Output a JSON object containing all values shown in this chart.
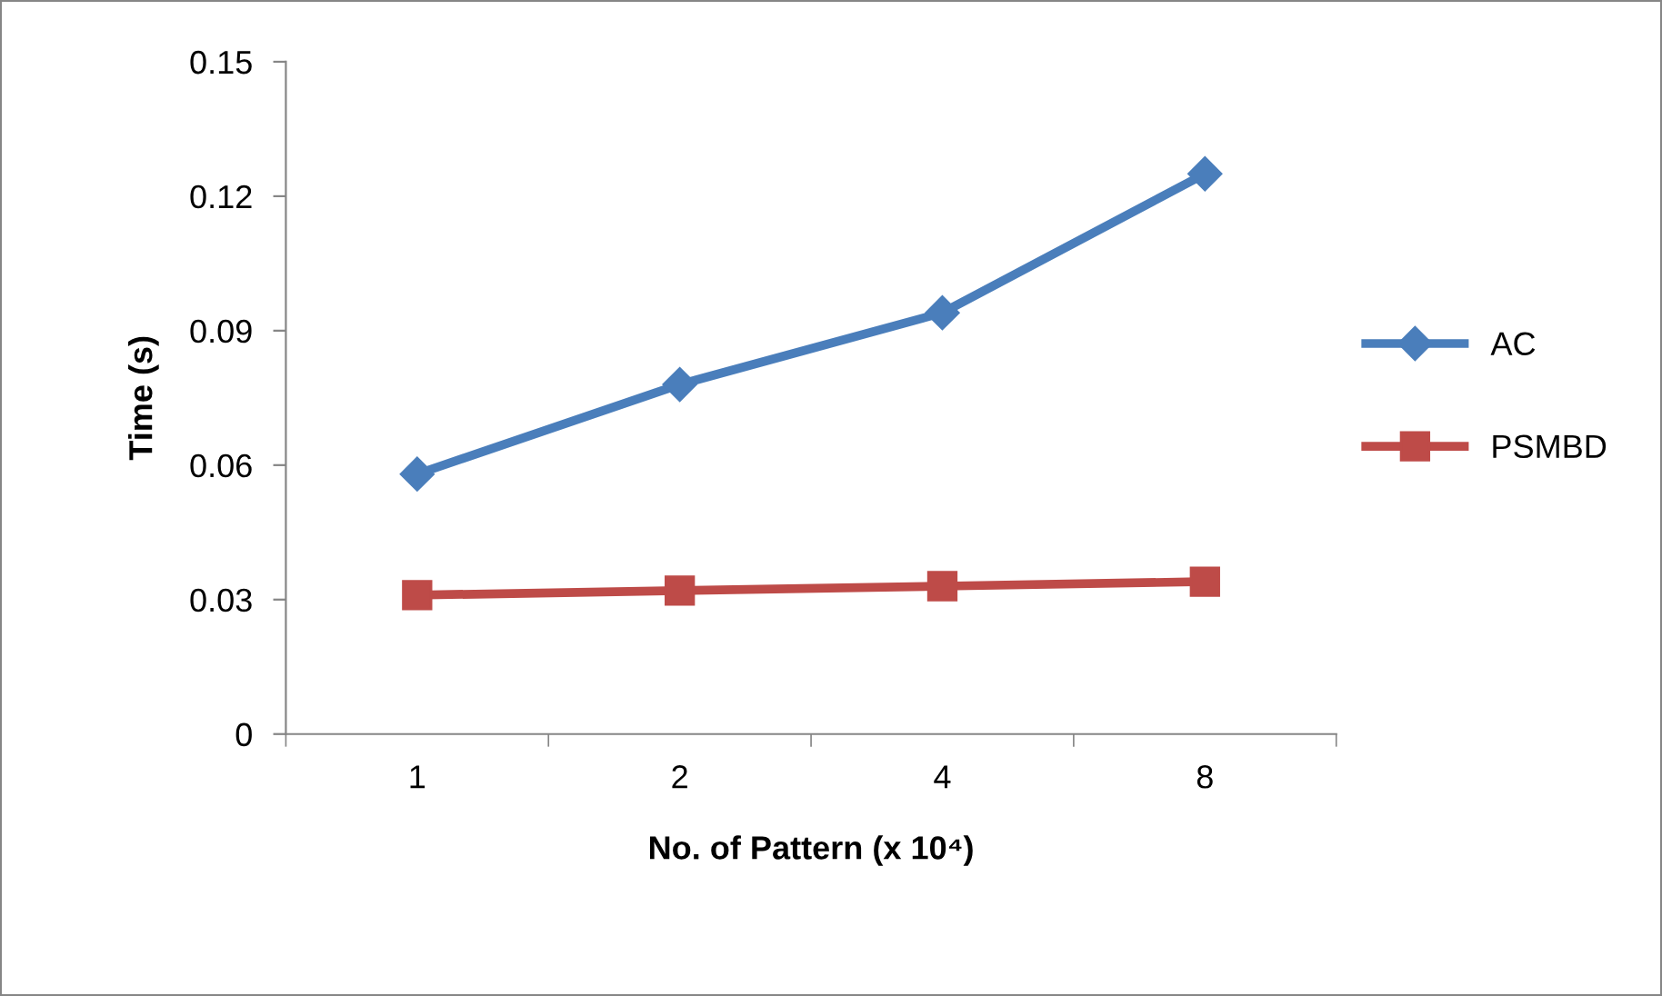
{
  "chart_data": {
    "type": "line",
    "xlabel": "No. of Pattern (x 10⁴)",
    "ylabel": "Time (s)",
    "categories": [
      "1",
      "2",
      "4",
      "8"
    ],
    "series": [
      {
        "name": "AC",
        "color": "#4a7ebb",
        "marker": "diamond",
        "values": [
          0.058,
          0.078,
          0.094,
          0.125
        ]
      },
      {
        "name": "PSMBD",
        "color": "#be4b48",
        "marker": "square",
        "values": [
          0.031,
          0.032,
          0.033,
          0.034
        ]
      }
    ],
    "ylim": [
      0,
      0.15
    ],
    "yticks": [
      0,
      0.03,
      0.06,
      0.09,
      0.12,
      0.15
    ],
    "grid": false,
    "legend": "right",
    "line_style": "solid"
  }
}
